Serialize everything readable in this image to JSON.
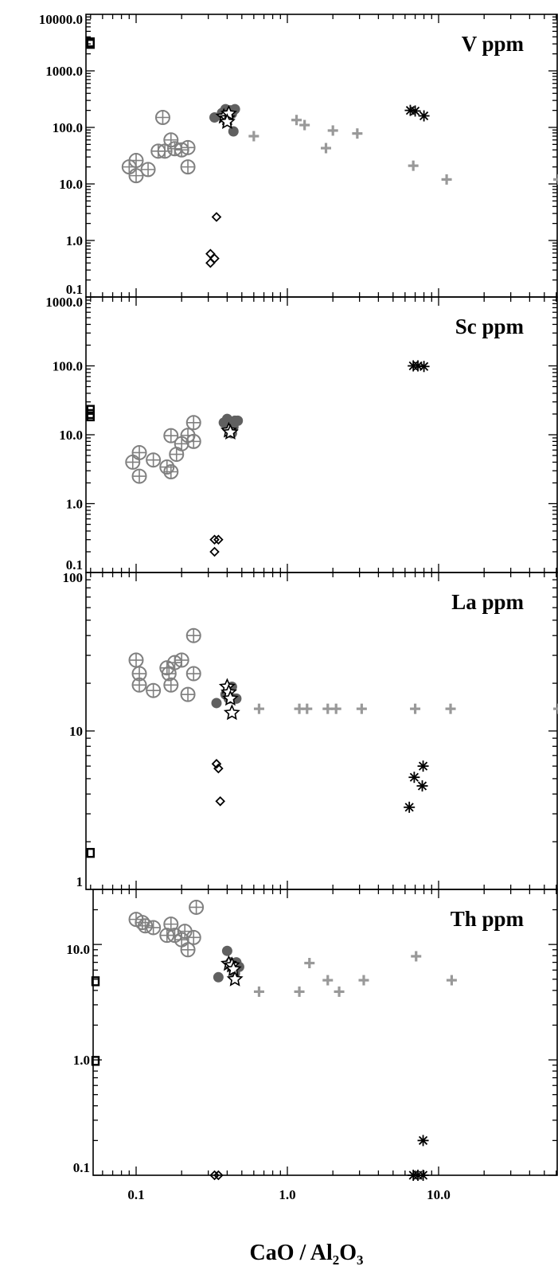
{
  "x_axis": {
    "label": "CaO / Al",
    "label_sub1": "2",
    "label_mid": "O",
    "label_sub2": "3",
    "tick_labels": [
      "0.1",
      "1.0",
      "10.0"
    ]
  },
  "chart_data": [
    {
      "type": "scatter",
      "title": "V ppm",
      "xscale": "log",
      "yscale": "log",
      "xlim": [
        0.05,
        60
      ],
      "ylim": [
        0.1,
        10000
      ],
      "ytick_values": [
        0.1,
        1,
        10,
        100,
        1000,
        10000
      ],
      "ytick_labels": [
        "0.1",
        "1.0",
        "10.0",
        "100.0",
        "1000.0",
        "10000.0"
      ],
      "series": [
        {
          "marker": "circle-plus",
          "color": "#808080",
          "points": [
            [
              0.09,
              20
            ],
            [
              0.1,
              26
            ],
            [
              0.1,
              14
            ],
            [
              0.12,
              18
            ],
            [
              0.14,
              38
            ],
            [
              0.15,
              150
            ],
            [
              0.155,
              38
            ],
            [
              0.17,
              60
            ],
            [
              0.18,
              42
            ],
            [
              0.2,
              40
            ],
            [
              0.22,
              44
            ],
            [
              0.22,
              20
            ]
          ]
        },
        {
          "marker": "filled-circle",
          "color": "#606060",
          "points": [
            [
              0.33,
              150
            ],
            [
              0.37,
              180
            ],
            [
              0.39,
              210
            ],
            [
              0.4,
              150
            ],
            [
              0.42,
              200
            ],
            [
              0.45,
              210
            ],
            [
              0.43,
              175
            ],
            [
              0.44,
              85
            ]
          ]
        },
        {
          "marker": "star",
          "color": "#000000",
          "points": [
            [
              0.38,
              155
            ],
            [
              0.4,
              145
            ],
            [
              0.41,
              175
            ],
            [
              0.4,
              125
            ]
          ]
        },
        {
          "marker": "plus",
          "color": "#999999",
          "points": [
            [
              0.6,
              70
            ],
            [
              1.15,
              135
            ],
            [
              1.3,
              110
            ],
            [
              1.8,
              43
            ],
            [
              2.0,
              88
            ],
            [
              2.9,
              78
            ],
            [
              6.8,
              21
            ],
            [
              11.3,
              12
            ],
            [
              62,
              12
            ]
          ]
        },
        {
          "marker": "asterisk",
          "color": "#000000",
          "points": [
            [
              6.5,
              200
            ],
            [
              7.0,
              195
            ],
            [
              8.0,
              160
            ]
          ]
        },
        {
          "marker": "diamond",
          "color": "#000000",
          "points": [
            [
              0.34,
              2.6
            ],
            [
              0.31,
              0.58
            ],
            [
              0.33,
              0.48
            ],
            [
              0.31,
              0.4
            ]
          ]
        },
        {
          "marker": "square",
          "color": "#000000",
          "points": [
            [
              0.05,
              3200
            ],
            [
              0.05,
              3000
            ]
          ]
        }
      ]
    },
    {
      "type": "scatter",
      "title": "Sc ppm",
      "xscale": "log",
      "yscale": "log",
      "xlim": [
        0.05,
        60
      ],
      "ylim": [
        0.1,
        1000
      ],
      "ytick_values": [
        0.1,
        1,
        10,
        100,
        1000
      ],
      "ytick_labels": [
        "0.1",
        "1.0",
        "10.0",
        "100.0",
        "1000.0"
      ],
      "series": [
        {
          "marker": "circle-plus",
          "color": "#808080",
          "points": [
            [
              0.095,
              4
            ],
            [
              0.105,
              5.5
            ],
            [
              0.105,
              2.5
            ],
            [
              0.13,
              4.3
            ],
            [
              0.16,
              3.4
            ],
            [
              0.17,
              9.7
            ],
            [
              0.17,
              2.9
            ],
            [
              0.185,
              5.2
            ],
            [
              0.2,
              7.4
            ],
            [
              0.22,
              9.8
            ],
            [
              0.24,
              8
            ],
            [
              0.24,
              15
            ]
          ]
        },
        {
          "marker": "filled-circle",
          "color": "#606060",
          "points": [
            [
              0.38,
              15
            ],
            [
              0.4,
              17
            ],
            [
              0.42,
              14
            ],
            [
              0.44,
              13
            ],
            [
              0.45,
              16
            ],
            [
              0.47,
              16
            ],
            [
              0.43,
              10.5
            ],
            [
              0.41,
              12
            ]
          ]
        },
        {
          "marker": "star",
          "color": "#000000",
          "points": [
            [
              0.41,
              11.5
            ],
            [
              0.42,
              10.8
            ]
          ]
        },
        {
          "marker": "asterisk",
          "color": "#000000",
          "points": [
            [
              6.8,
              100
            ],
            [
              7.3,
              100
            ],
            [
              8.0,
              98
            ]
          ]
        },
        {
          "marker": "diamond",
          "color": "#000000",
          "points": [
            [
              0.33,
              0.3
            ],
            [
              0.35,
              0.3
            ],
            [
              0.33,
              0.2
            ]
          ]
        },
        {
          "marker": "square",
          "color": "#000000",
          "points": [
            [
              0.05,
              23
            ],
            [
              0.05,
              20
            ],
            [
              0.05,
              18.5
            ]
          ]
        }
      ]
    },
    {
      "type": "scatter",
      "title": "La ppm",
      "xscale": "log",
      "yscale": "log",
      "xlim": [
        0.05,
        60
      ],
      "ylim": [
        1,
        100
      ],
      "ytick_values": [
        1,
        10,
        100
      ],
      "ytick_labels": [
        "1",
        "10",
        "100"
      ],
      "series": [
        {
          "marker": "circle-plus",
          "color": "#808080",
          "points": [
            [
              0.1,
              28
            ],
            [
              0.105,
              23
            ],
            [
              0.105,
              19.5
            ],
            [
              0.13,
              18
            ],
            [
              0.16,
              25
            ],
            [
              0.165,
              23
            ],
            [
              0.17,
              19.5
            ],
            [
              0.18,
              27
            ],
            [
              0.2,
              28
            ],
            [
              0.22,
              17
            ],
            [
              0.24,
              23
            ],
            [
              0.24,
              40
            ]
          ]
        },
        {
          "marker": "filled-circle",
          "color": "#606060",
          "points": [
            [
              0.34,
              15
            ],
            [
              0.39,
              17
            ],
            [
              0.41,
              16
            ],
            [
              0.44,
              16
            ],
            [
              0.46,
              16
            ],
            [
              0.43,
              19
            ]
          ]
        },
        {
          "marker": "star",
          "color": "#000000",
          "points": [
            [
              0.4,
              19
            ],
            [
              0.41,
              17.5
            ],
            [
              0.42,
              16
            ],
            [
              0.43,
              13
            ]
          ]
        },
        {
          "marker": "plus",
          "color": "#999999",
          "points": [
            [
              0.65,
              13.8
            ],
            [
              1.2,
              13.8
            ],
            [
              1.35,
              13.8
            ],
            [
              1.85,
              13.8
            ],
            [
              2.1,
              13.8
            ],
            [
              3.1,
              13.8
            ],
            [
              7.0,
              13.8
            ],
            [
              12,
              13.8
            ],
            [
              62,
              13.8
            ]
          ]
        },
        {
          "marker": "asterisk",
          "color": "#000000",
          "points": [
            [
              6.4,
              3.3
            ],
            [
              6.9,
              5.1
            ],
            [
              7.9,
              6.0
            ],
            [
              7.8,
              4.5
            ]
          ]
        },
        {
          "marker": "diamond",
          "color": "#000000",
          "points": [
            [
              0.34,
              6.2
            ],
            [
              0.35,
              5.8
            ],
            [
              0.36,
              3.6
            ]
          ]
        },
        {
          "marker": "square",
          "color": "#000000",
          "points": [
            [
              0.05,
              1.7
            ]
          ]
        }
      ]
    },
    {
      "type": "scatter",
      "title": "Th ppm",
      "xscale": "log",
      "yscale": "log",
      "xlim": [
        0.053,
        60
      ],
      "ylim": [
        0.1,
        30
      ],
      "ytick_values": [
        0.1,
        1,
        10
      ],
      "ytick_labels": [
        "0.1",
        "1.0",
        "10.0"
      ],
      "series": [
        {
          "marker": "circle-plus",
          "color": "#808080",
          "points": [
            [
              0.1,
              16.5
            ],
            [
              0.11,
              15.5
            ],
            [
              0.115,
              14.5
            ],
            [
              0.13,
              14
            ],
            [
              0.16,
              12
            ],
            [
              0.17,
              15
            ],
            [
              0.18,
              12
            ],
            [
              0.2,
              11
            ],
            [
              0.21,
              13
            ],
            [
              0.22,
              9
            ],
            [
              0.24,
              11.5
            ],
            [
              0.25,
              21
            ]
          ]
        },
        {
          "marker": "filled-circle",
          "color": "#606060",
          "points": [
            [
              0.35,
              5.2
            ],
            [
              0.4,
              8.8
            ],
            [
              0.42,
              7
            ],
            [
              0.44,
              6
            ],
            [
              0.46,
              7
            ],
            [
              0.48,
              6.4
            ],
            [
              0.45,
              5.6
            ]
          ]
        },
        {
          "marker": "star",
          "color": "#000000",
          "points": [
            [
              0.41,
              6.8
            ],
            [
              0.43,
              6.6
            ],
            [
              0.44,
              6.1
            ],
            [
              0.45,
              5
            ]
          ]
        },
        {
          "marker": "plus",
          "color": "#999999",
          "points": [
            [
              0.65,
              3.9
            ],
            [
              1.2,
              3.9
            ],
            [
              1.4,
              6.9
            ],
            [
              1.85,
              4.9
            ],
            [
              2.2,
              3.9
            ],
            [
              3.2,
              4.9
            ],
            [
              7.1,
              7.9
            ],
            [
              12.2,
              4.9
            ]
          ]
        },
        {
          "marker": "asterisk",
          "color": "#000000",
          "points": [
            [
              6.8,
              0.1
            ],
            [
              7.3,
              0.1
            ],
            [
              7.9,
              0.1
            ],
            [
              7.9,
              0.2
            ]
          ]
        },
        {
          "marker": "diamond",
          "color": "#000000",
          "points": [
            [
              0.33,
              0.1
            ],
            [
              0.35,
              0.1
            ]
          ]
        },
        {
          "marker": "square",
          "color": "#000000",
          "points": [
            [
              0.053,
              4.8
            ],
            [
              0.053,
              0.98
            ]
          ]
        }
      ]
    }
  ]
}
